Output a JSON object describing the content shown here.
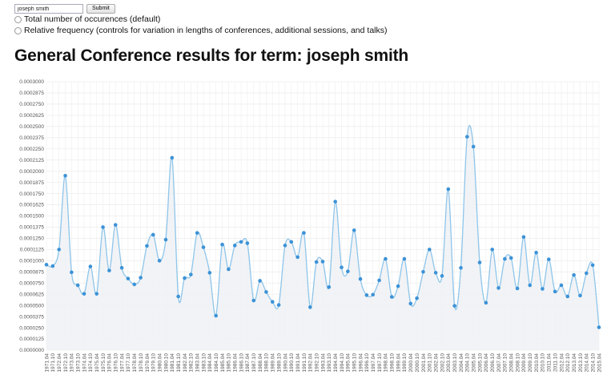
{
  "form": {
    "search_value": "joseph smith",
    "submit_label": "Submit",
    "option_total": "Total number of occurences (default)",
    "option_relative": "Relative frequency (controls for variation in lengths of conferences, additional sessions, and talks)"
  },
  "heading": "General Conference results for term: joseph smith",
  "colors": {
    "line": "#8ec5ea",
    "point": "#3c92d6",
    "area": "#eef1f4",
    "grid": "#eeeeee"
  },
  "chart_data": {
    "type": "line",
    "title": "General Conference results for term: joseph smith",
    "xlabel": "",
    "ylabel": "",
    "ylim": [
      0,
      0.0003
    ],
    "ytick_labels": [
      "0.0000000",
      "0.0000125",
      "0.0000250",
      "0.0000375",
      "0.0000500",
      "0.0000625",
      "0.0000750",
      "0.0000875",
      "0.0001000",
      "0.0001125",
      "0.0001250",
      "0.0001375",
      "0.0001500",
      "0.0001625",
      "0.0001750",
      "0.0001875",
      "0.0002000",
      "0.0002125",
      "0.0002250",
      "0.0002375",
      "0.0002500",
      "0.0002625",
      "0.0002750",
      "0.0002875",
      "0.0003000"
    ],
    "grid": true,
    "legend": "none",
    "x": [
      "1971.04",
      "1971.10",
      "1972.04",
      "1972.10",
      "1973.04",
      "1973.10",
      "1974.04",
      "1974.10",
      "1975.04",
      "1975.10",
      "1976.04",
      "1976.10",
      "1977.04",
      "1977.10",
      "1978.04",
      "1978.10",
      "1979.04",
      "1979.10",
      "1980.04",
      "1980.10",
      "1981.04",
      "1981.10",
      "1982.04",
      "1982.10",
      "1983.04",
      "1983.10",
      "1984.04",
      "1984.10",
      "1985.04",
      "1985.10",
      "1986.04",
      "1986.10",
      "1987.04",
      "1987.10",
      "1988.04",
      "1988.10",
      "1989.04",
      "1989.10",
      "1990.04",
      "1990.10",
      "1991.04",
      "1991.10",
      "1992.04",
      "1992.10",
      "1993.04",
      "1993.10",
      "1994.04",
      "1994.10",
      "1995.04",
      "1995.10",
      "1996.04",
      "1996.10",
      "1997.04",
      "1997.10",
      "1998.04",
      "1998.10",
      "1999.04",
      "1999.10",
      "2000.04",
      "2000.10",
      "2001.04",
      "2001.10",
      "2002.04",
      "2002.10",
      "2003.04",
      "2003.10",
      "2004.04",
      "2004.10",
      "2005.04",
      "2005.10",
      "2006.04",
      "2006.10",
      "2007.04",
      "2007.10",
      "2008.04",
      "2008.10",
      "2009.04",
      "2009.10",
      "2010.04",
      "2010.10",
      "2011.04",
      "2011.10",
      "2012.04",
      "2012.10",
      "2013.04",
      "2013.10",
      "2014.04",
      "2014.10",
      "2015.04"
    ],
    "values": [
      9.55e-05,
      9.4e-05,
      0.0001125,
      0.000195,
      8.7e-05,
      7.25e-05,
      6.3e-05,
      9.35e-05,
      6.3e-05,
      0.0001375,
      8.9e-05,
      0.00014,
      9.2e-05,
      8e-05,
      7.35e-05,
      8.1e-05,
      0.0001165,
      0.000129,
      0.0001,
      0.0001235,
      0.000215,
      6e-05,
      8.05e-05,
      8.45e-05,
      0.000131,
      0.000115,
      8.65e-05,
      3.85e-05,
      0.000118,
      9.05e-05,
      0.000117,
      0.000121,
      0.0001195,
      5.55e-05,
      7.75e-05,
      6.5e-05,
      5.4e-05,
      5.05e-05,
      0.000117,
      0.000121,
      0.000104,
      0.000131,
      4.8e-05,
      9.85e-05,
      9.9e-05,
      7.05e-05,
      0.000166,
      9.25e-05,
      8.8e-05,
      0.000134,
      7.95e-05,
      6.15e-05,
      6.2e-05,
      7.8e-05,
      0.000102,
      5.95e-05,
      7.15e-05,
      0.000102,
      5.2e-05,
      5.8e-05,
      8.75e-05,
      0.0001125,
      8.65e-05,
      8.3e-05,
      0.00018,
      4.95e-05,
      9.2e-05,
      0.0002385,
      0.0002275,
      9.8e-05,
      5.3e-05,
      0.0001125,
      6.95e-05,
      0.000102,
      0.000103,
      6.9e-05,
      0.0001265,
      7.25e-05,
      0.000109,
      6.85e-05,
      0.0001015,
      6.55e-05,
      7.25e-05,
      6e-05,
      8.4e-05,
      6.1e-05,
      8.6e-05,
      9.5e-05,
      2.55e-05
    ]
  }
}
